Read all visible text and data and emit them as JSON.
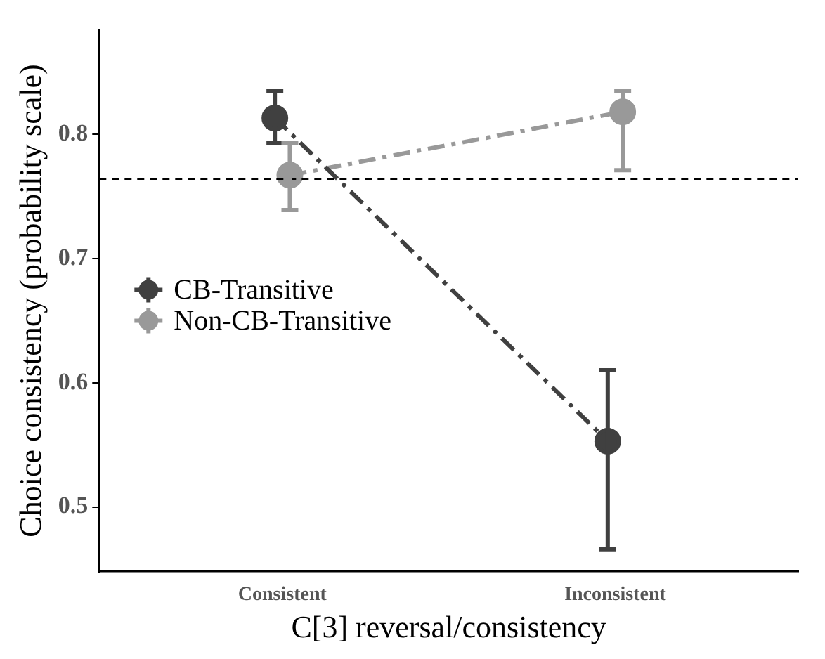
{
  "chart_data": {
    "type": "line",
    "xlabel": "C[3] reversal/consistency",
    "ylabel": "Choice consistency (probability scale)",
    "categories": [
      "Consistent",
      "Inconsistent"
    ],
    "series": [
      {
        "name": "CB-Transitive",
        "color": "#404040",
        "values": [
          0.813,
          0.553
        ],
        "errors": [
          [
            0.793,
            0.835
          ],
          [
            0.466,
            0.61
          ]
        ]
      },
      {
        "name": "Non-CB-Transitive",
        "color": "#999999",
        "values": [
          0.767,
          0.818
        ],
        "errors": [
          [
            0.739,
            0.793
          ],
          [
            0.771,
            0.835
          ]
        ]
      }
    ],
    "ylim": [
      0.448,
      0.884
    ],
    "yticks": [
      0.5,
      0.6,
      0.7,
      0.8
    ],
    "grid": false,
    "legend": "left",
    "marker": "circle",
    "line_style": "dashed",
    "ref_lines": [
      {
        "axis": "y",
        "value": 0.764,
        "color": "#000000",
        "line_style": "dashed"
      }
    ]
  }
}
